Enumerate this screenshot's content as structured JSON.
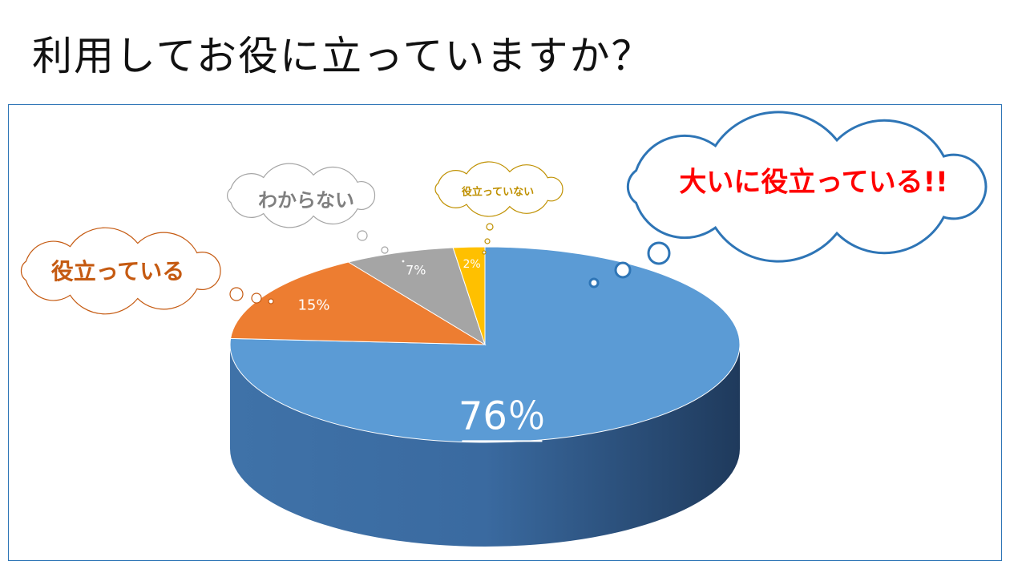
{
  "title": "利用してお役に立っていますか？",
  "chart_data": {
    "type": "pie",
    "style": "3d",
    "slices": [
      {
        "label": "大いに役立っている!!",
        "value": 76,
        "display": "76％",
        "color": "#5b9bd5",
        "label_color": "#ff0000",
        "bubble_color": "#2e75b6"
      },
      {
        "label": "役立っている",
        "value": 15,
        "display": "15%",
        "color": "#ed7d31",
        "label_color": "#c55a11",
        "bubble_color": "#c55a11"
      },
      {
        "label": "わからない",
        "value": 7,
        "display": "7%",
        "color": "#a5a5a5",
        "label_color": "#7f7f7f",
        "bubble_color": "#a5a5a5"
      },
      {
        "label": "役立っていない",
        "value": 2,
        "display": "2%",
        "color": "#ffc000",
        "label_color": "#bf9000",
        "bubble_color": "#bf9000"
      }
    ]
  }
}
